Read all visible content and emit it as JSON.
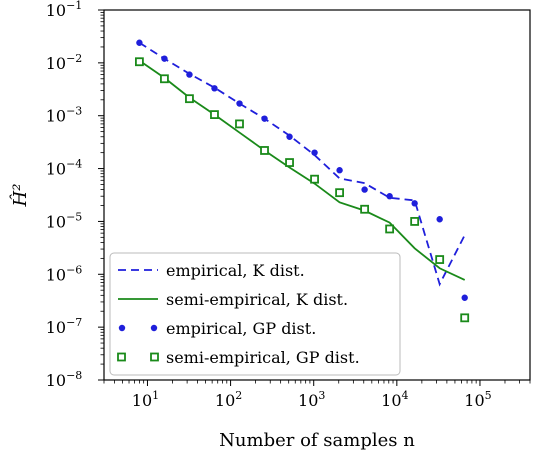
{
  "chart_data": {
    "type": "line",
    "xlabel": "Number of samples n",
    "ylabel": "Ĥ²",
    "xscale": "log",
    "yscale": "log",
    "xlim": [
      3,
      400000
    ],
    "ylim": [
      1e-08,
      0.1
    ],
    "grid": false,
    "legend_position": "lower-left",
    "x_ticks": [
      {
        "base": "10",
        "exp": "1",
        "value": 10
      },
      {
        "base": "10",
        "exp": "2",
        "value": 100
      },
      {
        "base": "10",
        "exp": "3",
        "value": 1000
      },
      {
        "base": "10",
        "exp": "4",
        "value": 10000
      },
      {
        "base": "10",
        "exp": "5",
        "value": 100000
      }
    ],
    "y_ticks": [
      {
        "base": "10",
        "exp": "−1",
        "value": 0.1
      },
      {
        "base": "10",
        "exp": "−2",
        "value": 0.01
      },
      {
        "base": "10",
        "exp": "−3",
        "value": 0.001
      },
      {
        "base": "10",
        "exp": "−4",
        "value": 0.0001
      },
      {
        "base": "10",
        "exp": "−5",
        "value": 1e-05
      },
      {
        "base": "10",
        "exp": "−6",
        "value": 1e-06
      },
      {
        "base": "10",
        "exp": "−7",
        "value": 1e-07
      },
      {
        "base": "10",
        "exp": "−8",
        "value": 1e-08
      }
    ],
    "series": [
      {
        "name": "empirical, K dist.",
        "style": "dashed",
        "color": "#1f1fdb",
        "x": [
          8,
          16,
          32,
          64,
          128,
          256,
          512,
          1024,
          2048,
          4096,
          8192,
          16384,
          32768,
          65536
        ],
        "y": [
          0.024,
          0.012,
          0.0062,
          0.0034,
          0.0017,
          0.00088,
          0.00042,
          0.00018,
          6.5e-05,
          5.3e-05,
          2.8e-05,
          2.5e-05,
          6.5e-07,
          5.5e-06
        ]
      },
      {
        "name": "semi-empirical, K dist.",
        "style": "solid",
        "color": "#1a8a1a",
        "x": [
          8,
          16,
          32,
          64,
          128,
          256,
          512,
          1024,
          2048,
          4096,
          8192,
          16384,
          32768,
          65536
        ],
        "y": [
          0.011,
          0.0052,
          0.0022,
          0.00105,
          0.00048,
          0.00022,
          0.000105,
          5.2e-05,
          2.3e-05,
          1.6e-05,
          9.5e-06,
          3.1e-06,
          1.3e-06,
          7.8e-07
        ]
      },
      {
        "name": "empirical, GP dist.",
        "style": "dots",
        "color": "#1f1fdb",
        "x": [
          8,
          16,
          32,
          64,
          128,
          256,
          512,
          1024,
          2048,
          4096,
          8192,
          16384,
          32768,
          65536
        ],
        "y": [
          0.024,
          0.012,
          0.006,
          0.0033,
          0.0017,
          0.00088,
          0.0004,
          0.0002,
          9.3e-05,
          4e-05,
          3e-05,
          2.2e-05,
          1.1e-05,
          3.6e-07
        ]
      },
      {
        "name": "semi-empirical, GP dist.",
        "style": "squares",
        "color": "#1a8a1a",
        "x": [
          8,
          16,
          32,
          64,
          128,
          256,
          512,
          1024,
          2048,
          4096,
          8192,
          16384,
          32768,
          65536
        ],
        "y": [
          0.0105,
          0.005,
          0.0021,
          0.00105,
          0.0007,
          0.00022,
          0.00013,
          6.3e-05,
          3.5e-05,
          1.7e-05,
          7.2e-06,
          1e-05,
          1.9e-06,
          1.5e-07
        ]
      }
    ]
  }
}
